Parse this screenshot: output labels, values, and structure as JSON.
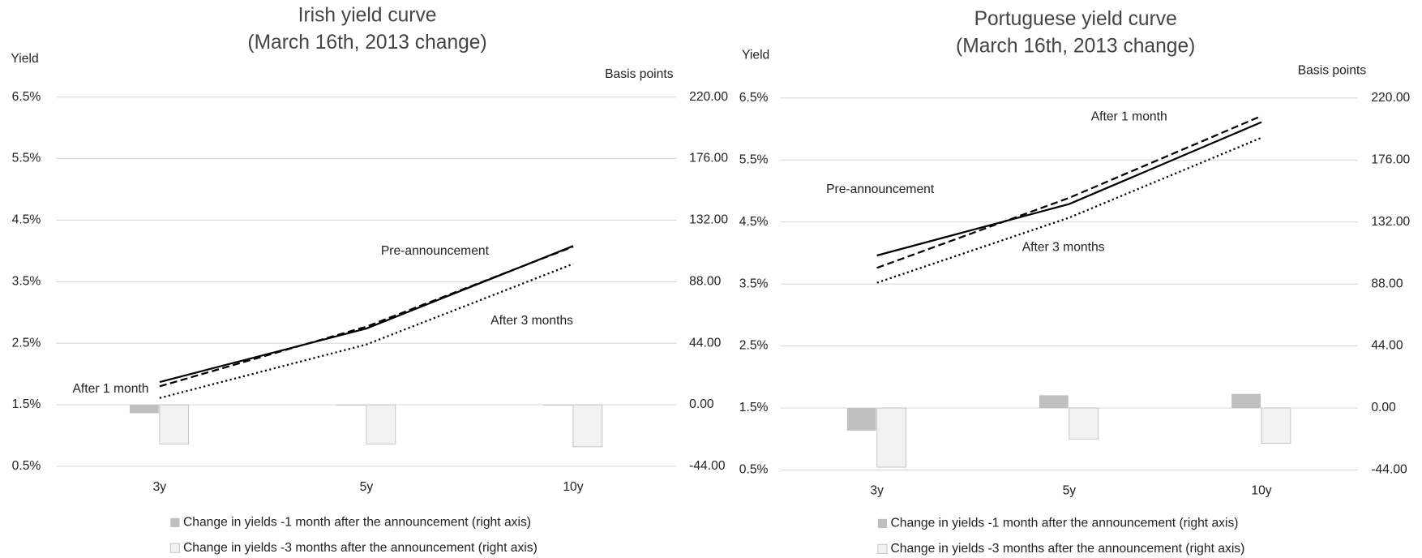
{
  "chart_data": [
    {
      "type": "combo",
      "title": [
        "Irish yield curve",
        "(March 16th, 2013 change)"
      ],
      "y_label": "Yield",
      "y2_label": "Basis points",
      "categories": [
        "3y",
        "5y",
        "10y"
      ],
      "ylim": [
        0.5,
        6.5
      ],
      "yticks": [
        {
          "value": 0.5,
          "label": "0.5%"
        },
        {
          "value": 1.5,
          "label": "1.5%"
        },
        {
          "value": 2.5,
          "label": "2.5%"
        },
        {
          "value": 3.5,
          "label": "3.5%"
        },
        {
          "value": 4.5,
          "label": "4.5%"
        },
        {
          "value": 5.5,
          "label": "5.5%"
        },
        {
          "value": 6.5,
          "label": "6.5%"
        }
      ],
      "y2lim": [
        -44,
        220
      ],
      "y2ticks": [
        {
          "value": -44,
          "label": "-44.00"
        },
        {
          "value": 0,
          "label": "0.00"
        },
        {
          "value": 44,
          "label": "44.00"
        },
        {
          "value": 88,
          "label": "88.00"
        },
        {
          "value": 132,
          "label": "132.00"
        },
        {
          "value": 176,
          "label": "176.00"
        },
        {
          "value": 220,
          "label": "220.00"
        }
      ],
      "grid": true,
      "series": [
        {
          "name": "Pre-announcement",
          "type": "line",
          "dash": "solid",
          "color": "#000000",
          "values": [
            1.87,
            2.74,
            4.08
          ]
        },
        {
          "name": "After 1 month",
          "type": "line",
          "dash": "dashed",
          "color": "#000000",
          "values": [
            1.8,
            2.77,
            4.07
          ]
        },
        {
          "name": "After 3 months",
          "type": "line",
          "dash": "dotted",
          "color": "#000000",
          "values": [
            1.61,
            2.48,
            3.79
          ]
        },
        {
          "name": "Change in yields -1 month after the announcement (right axis)",
          "type": "bar",
          "axis": "y2",
          "color": "#bfbfbf",
          "values": [
            -6,
            -0.5,
            -0.5
          ]
        },
        {
          "name": "Change in yields -3 months after the announcement (right axis)",
          "type": "bar",
          "axis": "y2",
          "color": "#f2f2f2",
          "values": [
            -28,
            -28,
            -30
          ]
        }
      ]
    },
    {
      "type": "combo",
      "title": [
        "Portuguese yield curve",
        "(March 16th, 2013 change)"
      ],
      "y_label": "Yield",
      "y2_label": "Basis points",
      "categories": [
        "3y",
        "5y",
        "10y"
      ],
      "ylim": [
        0.5,
        6.5
      ],
      "yticks": [
        {
          "value": 0.5,
          "label": "0.5%"
        },
        {
          "value": 1.5,
          "label": "1.5%"
        },
        {
          "value": 2.5,
          "label": "2.5%"
        },
        {
          "value": 3.5,
          "label": "3.5%"
        },
        {
          "value": 4.5,
          "label": "4.5%"
        },
        {
          "value": 5.5,
          "label": "5.5%"
        },
        {
          "value": 6.5,
          "label": "6.5%"
        }
      ],
      "y2lim": [
        -44,
        220
      ],
      "y2ticks": [
        {
          "value": -44,
          "label": "-44.00"
        },
        {
          "value": 0,
          "label": "0.00"
        },
        {
          "value": 44,
          "label": "44.00"
        },
        {
          "value": 88,
          "label": "88.00"
        },
        {
          "value": 132,
          "label": "132.00"
        },
        {
          "value": 176,
          "label": "176.00"
        },
        {
          "value": 220,
          "label": "220.00"
        }
      ],
      "grid": true,
      "series": [
        {
          "name": "Pre-announcement",
          "type": "line",
          "dash": "solid",
          "color": "#000000",
          "values": [
            3.96,
            4.79,
            6.11
          ]
        },
        {
          "name": "After 1 month",
          "type": "line",
          "dash": "dashed",
          "color": "#000000",
          "values": [
            3.76,
            4.89,
            6.21
          ]
        },
        {
          "name": "After 3 months",
          "type": "line",
          "dash": "dotted",
          "color": "#000000",
          "values": [
            3.52,
            4.57,
            5.86
          ]
        },
        {
          "name": "Change in yields -1 month after the announcement (right axis)",
          "type": "bar",
          "axis": "y2",
          "color": "#bfbfbf",
          "values": [
            -16,
            9,
            10
          ]
        },
        {
          "name": "Change in yields -3 months after the announcement (right axis)",
          "type": "bar",
          "axis": "y2",
          "color": "#f2f2f2",
          "values": [
            -42,
            -22,
            -25
          ]
        }
      ]
    }
  ]
}
